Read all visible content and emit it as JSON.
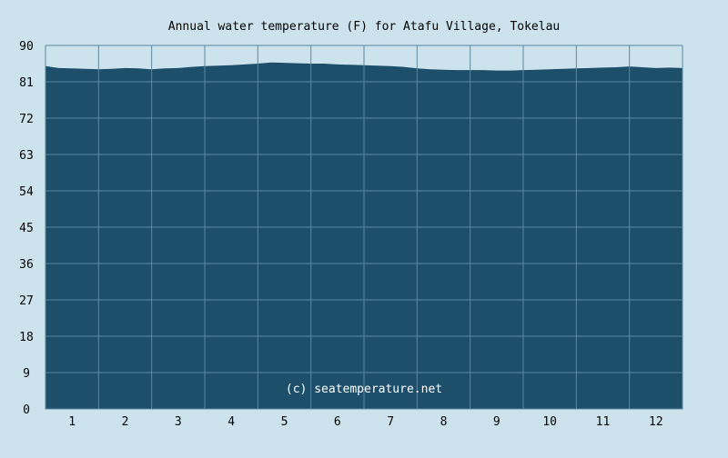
{
  "chart_data": {
    "type": "area",
    "title": "Annual water temperature (F) for Atafu Village, Tokelau",
    "xlabel": "",
    "ylabel": "",
    "ylim": [
      0,
      90
    ],
    "yticks": [
      "0",
      "9",
      "18",
      "27",
      "36",
      "45",
      "54",
      "63",
      "72",
      "81",
      "90"
    ],
    "xticks": [
      "1",
      "2",
      "3",
      "4",
      "5",
      "6",
      "7",
      "8",
      "9",
      "10",
      "11",
      "12"
    ],
    "xlim": [
      0.5,
      12.5
    ],
    "grid": true,
    "watermark": "(c) seatemperature.net",
    "x": [
      0.5,
      0.75,
      1.0,
      1.25,
      1.5,
      1.75,
      2.0,
      2.25,
      2.5,
      2.75,
      3.0,
      3.25,
      3.5,
      3.75,
      4.0,
      4.25,
      4.5,
      4.75,
      5.0,
      5.25,
      5.5,
      5.75,
      6.0,
      6.25,
      6.5,
      6.75,
      7.0,
      7.25,
      7.5,
      7.75,
      8.0,
      8.25,
      8.5,
      8.75,
      9.0,
      9.25,
      9.5,
      9.75,
      10.0,
      10.25,
      10.5,
      10.75,
      11.0,
      11.25,
      11.5,
      11.75,
      12.0,
      12.25,
      12.5
    ],
    "values": [
      84.9,
      84.4,
      84.3,
      84.2,
      84.1,
      84.2,
      84.4,
      84.3,
      84.1,
      84.3,
      84.4,
      84.7,
      84.9,
      85.0,
      85.1,
      85.3,
      85.5,
      85.8,
      85.7,
      85.6,
      85.5,
      85.5,
      85.3,
      85.2,
      85.1,
      85.0,
      84.9,
      84.7,
      84.3,
      84.1,
      84.0,
      83.9,
      83.9,
      83.9,
      83.8,
      83.8,
      83.9,
      84.0,
      84.1,
      84.2,
      84.3,
      84.4,
      84.5,
      84.6,
      84.8,
      84.6,
      84.4,
      84.5,
      84.4
    ]
  },
  "colors": {
    "background": "#cce3ee",
    "plot_fill": "#1d4f6b",
    "grid": "#5c87a0",
    "axis": "#5c87a0",
    "text": "#000000",
    "watermark": "#ffffff"
  }
}
